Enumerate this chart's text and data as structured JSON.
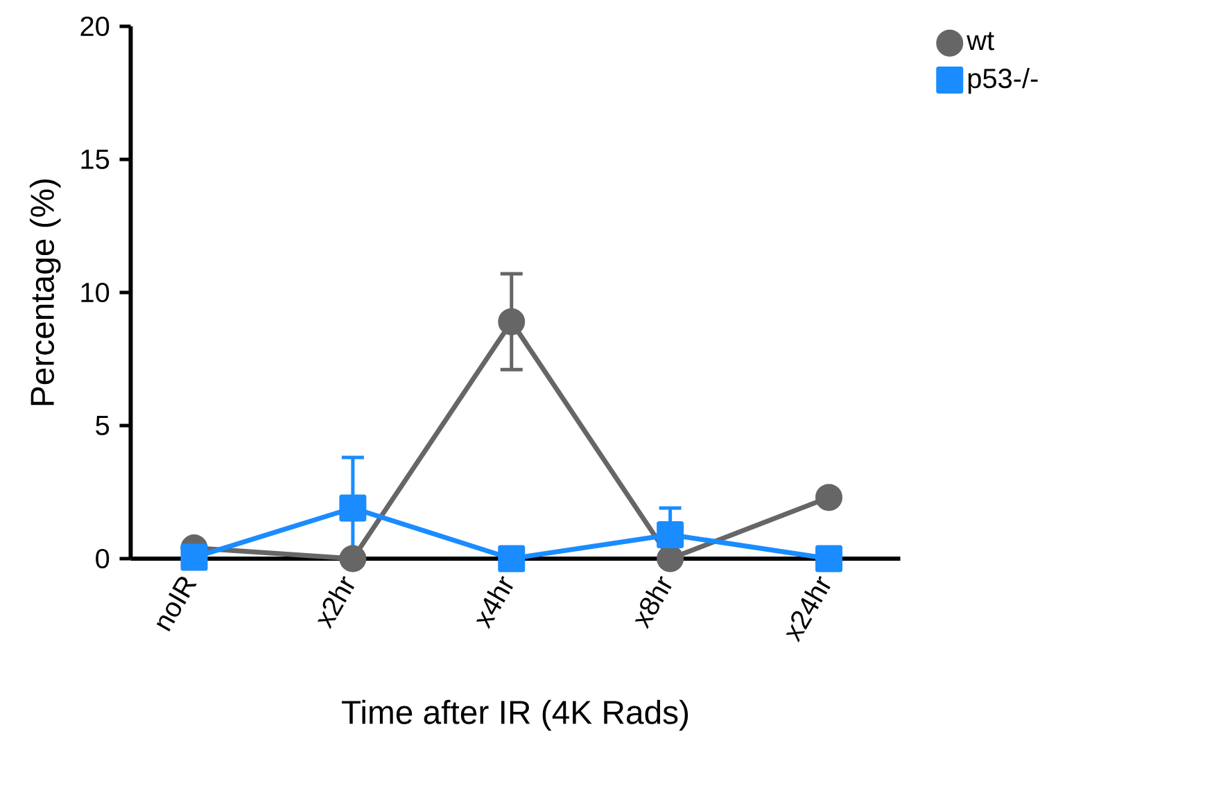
{
  "chart_data": {
    "type": "line",
    "xlabel": "Time after IR (4K Rads)",
    "ylabel": "Percentage (%)",
    "categories": [
      "noIR",
      "x2hr",
      "x4hr",
      "x8hr",
      "x24hr"
    ],
    "series": [
      {
        "name": "wt",
        "color": "#666666",
        "marker": "circle",
        "values": [
          0.4,
          0,
          8.9,
          0,
          2.3
        ],
        "errors": [
          null,
          null,
          1.8,
          null,
          null
        ]
      },
      {
        "name": "p53-/-",
        "color": "#1a8cff",
        "marker": "square",
        "values": [
          0.05,
          1.9,
          0,
          0.9,
          0
        ],
        "errors": [
          null,
          1.9,
          null,
          1.0,
          null
        ]
      }
    ],
    "ylim": [
      0,
      20
    ],
    "yticks": [
      0,
      5,
      10,
      15,
      20
    ],
    "grid": false,
    "legend": "top right"
  }
}
